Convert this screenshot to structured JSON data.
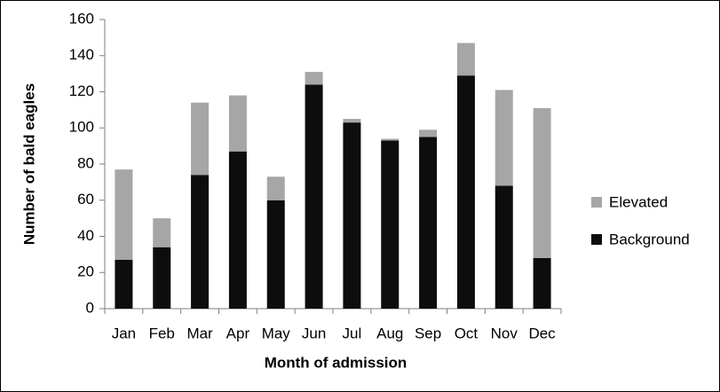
{
  "chart_data": {
    "type": "stacked_bar",
    "xlabel": "Month of admission",
    "ylabel": "Number of bald eagles",
    "categories": [
      "Jan",
      "Feb",
      "Mar",
      "Apr",
      "May",
      "Jun",
      "Jul",
      "Aug",
      "Sep",
      "Oct",
      "Nov",
      "Dec"
    ],
    "series": [
      {
        "name": "Background",
        "color": "#0d0d0d",
        "values": [
          27,
          34,
          74,
          87,
          60,
          124,
          103,
          93,
          95,
          129,
          68,
          28
        ]
      },
      {
        "name": "Elevated",
        "color": "#a6a6a6",
        "values": [
          50,
          16,
          40,
          31,
          13,
          7,
          2,
          1,
          4,
          18,
          53,
          83
        ]
      }
    ],
    "ylim": [
      0,
      160
    ],
    "yticks": [
      0,
      20,
      40,
      60,
      80,
      100,
      120,
      140,
      160
    ],
    "grid": false,
    "legend": "right"
  }
}
